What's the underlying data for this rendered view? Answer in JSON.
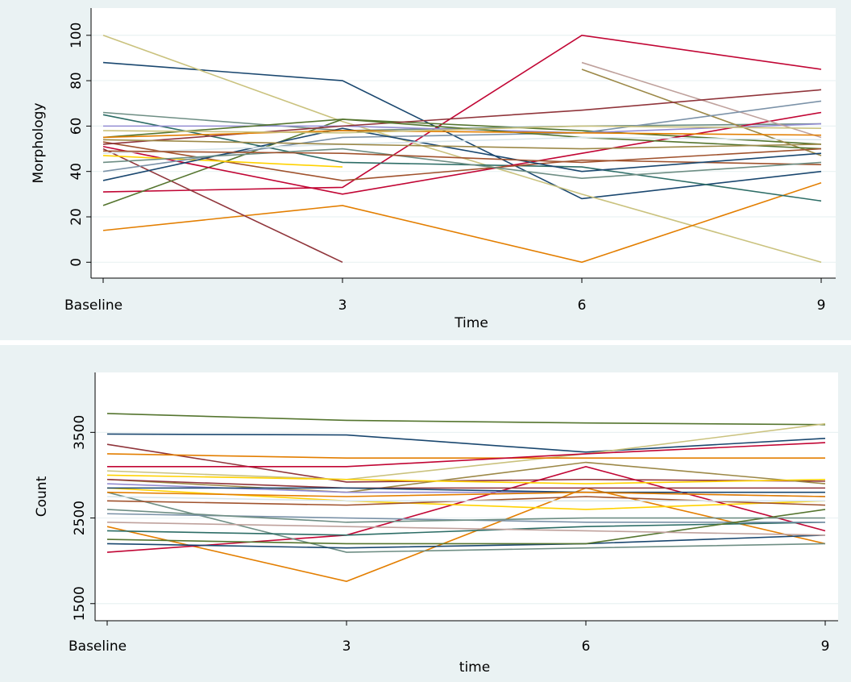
{
  "chart_data": [
    {
      "type": "line",
      "x_label": "Time",
      "y_label": "Morphology",
      "categories": [
        "Baseline",
        "3",
        "6",
        "9"
      ],
      "ylim": [
        -7,
        112
      ],
      "yticks": [
        0,
        20,
        40,
        60,
        80,
        100
      ],
      "grid": true,
      "series": [
        {
          "color": "#1a476f",
          "values": [
            88,
            80,
            28,
            40
          ]
        },
        {
          "color": "#cac27e",
          "values": [
            100,
            62,
            30,
            0
          ]
        },
        {
          "color": "#c10534",
          "values": [
            31,
            33,
            100,
            85
          ]
        },
        {
          "color": "#e37e00",
          "values": [
            14,
            25,
            0,
            35
          ]
        },
        {
          "color": "#90353b",
          "values": [
            50,
            0,
            null,
            null
          ]
        },
        {
          "color": "#55752f",
          "values": [
            25,
            63,
            58,
            52
          ]
        },
        {
          "color": "#6e8e84",
          "values": [
            66,
            58,
            60,
            61
          ]
        },
        {
          "color": "#2d6d66",
          "values": [
            65,
            44,
            42,
            27
          ]
        },
        {
          "color": "#c10534",
          "values": [
            51,
            30,
            48,
            66
          ]
        },
        {
          "color": "#938dd2",
          "values": [
            60,
            60,
            57,
            61
          ]
        },
        {
          "color": "#9c8847",
          "values": [
            null,
            null,
            85,
            47
          ]
        },
        {
          "color": "#bfa19c",
          "values": [
            null,
            null,
            88,
            55
          ]
        },
        {
          "color": "#a0522d",
          "values": [
            53,
            36,
            45,
            43
          ]
        },
        {
          "color": "#ffd200",
          "values": [
            47,
            42,
            null,
            null
          ]
        },
        {
          "color": "#7b92a8",
          "values": [
            40,
            55,
            57,
            71
          ]
        },
        {
          "color": "#90353b",
          "values": [
            52,
            60,
            67,
            76
          ]
        },
        {
          "color": "#1a476f",
          "values": [
            36,
            59,
            40,
            48
          ]
        },
        {
          "color": "#55752f",
          "values": [
            55,
            63,
            55,
            50
          ]
        },
        {
          "color": "#e37e00",
          "values": [
            55,
            58,
            57,
            56
          ]
        },
        {
          "color": "#6e8e84",
          "values": [
            44,
            50,
            37,
            44
          ]
        },
        {
          "color": "#cac27e",
          "values": [
            58,
            57,
            60,
            59
          ]
        },
        {
          "color": "#d9e6eb",
          "values": [
            48,
            52,
            55,
            54
          ]
        },
        {
          "color": "#9c8847",
          "values": [
            54,
            52,
            50,
            52
          ]
        },
        {
          "color": "#a0522d",
          "values": [
            49,
            48,
            44,
            50
          ]
        }
      ]
    },
    {
      "type": "line",
      "x_label": "time",
      "y_label": "Count",
      "categories": [
        "Baseline",
        "3",
        "6",
        "9"
      ],
      "ylim": [
        1300,
        4200
      ],
      "yticks": [
        1500,
        2500,
        3500
      ],
      "grid": true,
      "series": [
        {
          "color": "#55752f",
          "values": [
            3720,
            3640,
            3610,
            3590
          ]
        },
        {
          "color": "#1a476f",
          "values": [
            3480,
            3470,
            3270,
            3430
          ]
        },
        {
          "color": "#90353b",
          "values": [
            3360,
            2920,
            2950,
            2930
          ]
        },
        {
          "color": "#e37e00",
          "values": [
            2400,
            1760,
            2850,
            2200
          ]
        },
        {
          "color": "#c10534",
          "values": [
            2100,
            2300,
            3100,
            2350
          ]
        },
        {
          "color": "#cac27e",
          "values": [
            3050,
            2950,
            3250,
            3600
          ]
        },
        {
          "color": "#e37e00",
          "values": [
            3250,
            3200,
            3200,
            3200
          ]
        },
        {
          "color": "#c10534",
          "values": [
            3100,
            3100,
            3250,
            3380
          ]
        },
        {
          "color": "#6e8e84",
          "values": [
            2800,
            2100,
            2150,
            2200
          ]
        },
        {
          "color": "#9c8847",
          "values": [
            2950,
            2800,
            3150,
            2900
          ]
        },
        {
          "color": "#ffd200",
          "values": [
            2850,
            2700,
            2600,
            2700
          ]
        },
        {
          "color": "#1a476f",
          "values": [
            2200,
            2150,
            2200,
            2300
          ]
        },
        {
          "color": "#2d6d66",
          "values": [
            2350,
            2300,
            2400,
            2450
          ]
        },
        {
          "color": "#938dd2",
          "values": [
            2900,
            2800,
            2800,
            2750
          ]
        },
        {
          "color": "#7b92a8",
          "values": [
            2550,
            2500,
            2450,
            2450
          ]
        },
        {
          "color": "#a0522d",
          "values": [
            2700,
            2650,
            2750,
            2650
          ]
        },
        {
          "color": "#55752f",
          "values": [
            2250,
            2200,
            2200,
            2600
          ]
        },
        {
          "color": "#90353b",
          "values": [
            2950,
            2850,
            2850,
            2850
          ]
        },
        {
          "color": "#ffd200",
          "values": [
            3000,
            2950,
            2900,
            2950
          ]
        },
        {
          "color": "#1a476f",
          "values": [
            2850,
            2850,
            2800,
            2800
          ]
        },
        {
          "color": "#6e8e84",
          "values": [
            2600,
            2450,
            2500,
            2500
          ]
        },
        {
          "color": "#bfa19c",
          "values": [
            2450,
            2400,
            2350,
            2300
          ]
        },
        {
          "color": "#d9e6eb",
          "values": [
            2750,
            2700,
            2700,
            2700
          ]
        },
        {
          "color": "#e37e00",
          "values": [
            2800,
            2750,
            2800,
            2750
          ]
        }
      ]
    }
  ]
}
